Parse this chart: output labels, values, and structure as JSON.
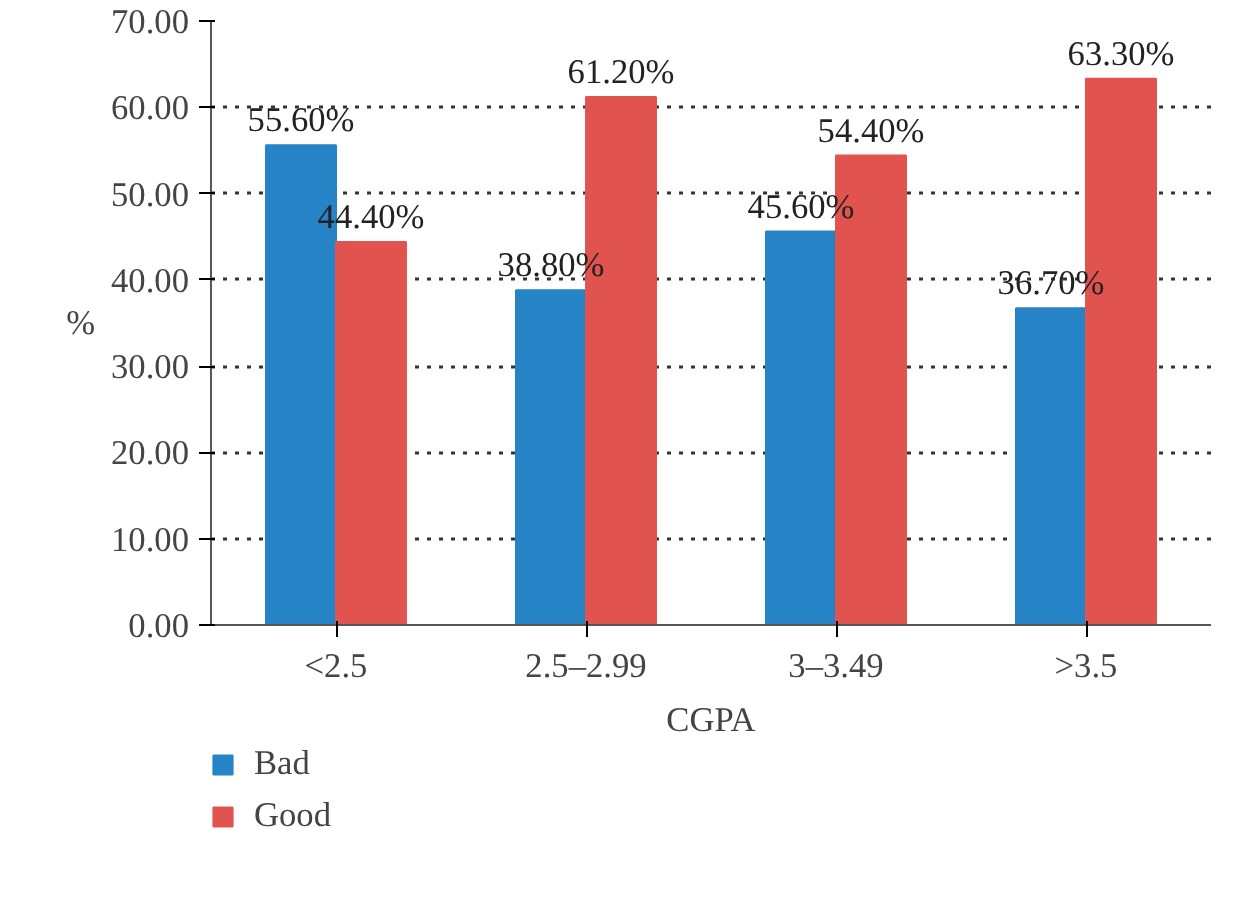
{
  "chart_data": {
    "type": "bar",
    "xlabel": "CGPA",
    "ylabel": "%",
    "categories": [
      "<2.5",
      "2.5–2.99",
      "3–3.49",
      ">3.5"
    ],
    "series": [
      {
        "name": "Bad",
        "color": "#2683c6",
        "values": [
          55.6,
          38.8,
          45.6,
          36.7
        ],
        "value_labels": [
          "55.60%",
          "38.80%",
          "45.60%",
          "36.70%"
        ]
      },
      {
        "name": "Good",
        "color": "#e0534f",
        "values": [
          44.4,
          61.2,
          54.4,
          63.3
        ],
        "value_labels": [
          "44.40%",
          "61.20%",
          "54.40%",
          "63.30%"
        ]
      }
    ],
    "ylim": [
      0,
      70
    ],
    "yticks": [
      {
        "value": 0,
        "label": "0.00"
      },
      {
        "value": 10,
        "label": "10.00"
      },
      {
        "value": 20,
        "label": "20.00"
      },
      {
        "value": 30,
        "label": "30.00"
      },
      {
        "value": 40,
        "label": "40.00"
      },
      {
        "value": 50,
        "label": "50.00"
      },
      {
        "value": 60,
        "label": "60.00"
      },
      {
        "value": 70,
        "label": "70.00"
      }
    ],
    "grid": "y",
    "legend": "bottom left"
  }
}
